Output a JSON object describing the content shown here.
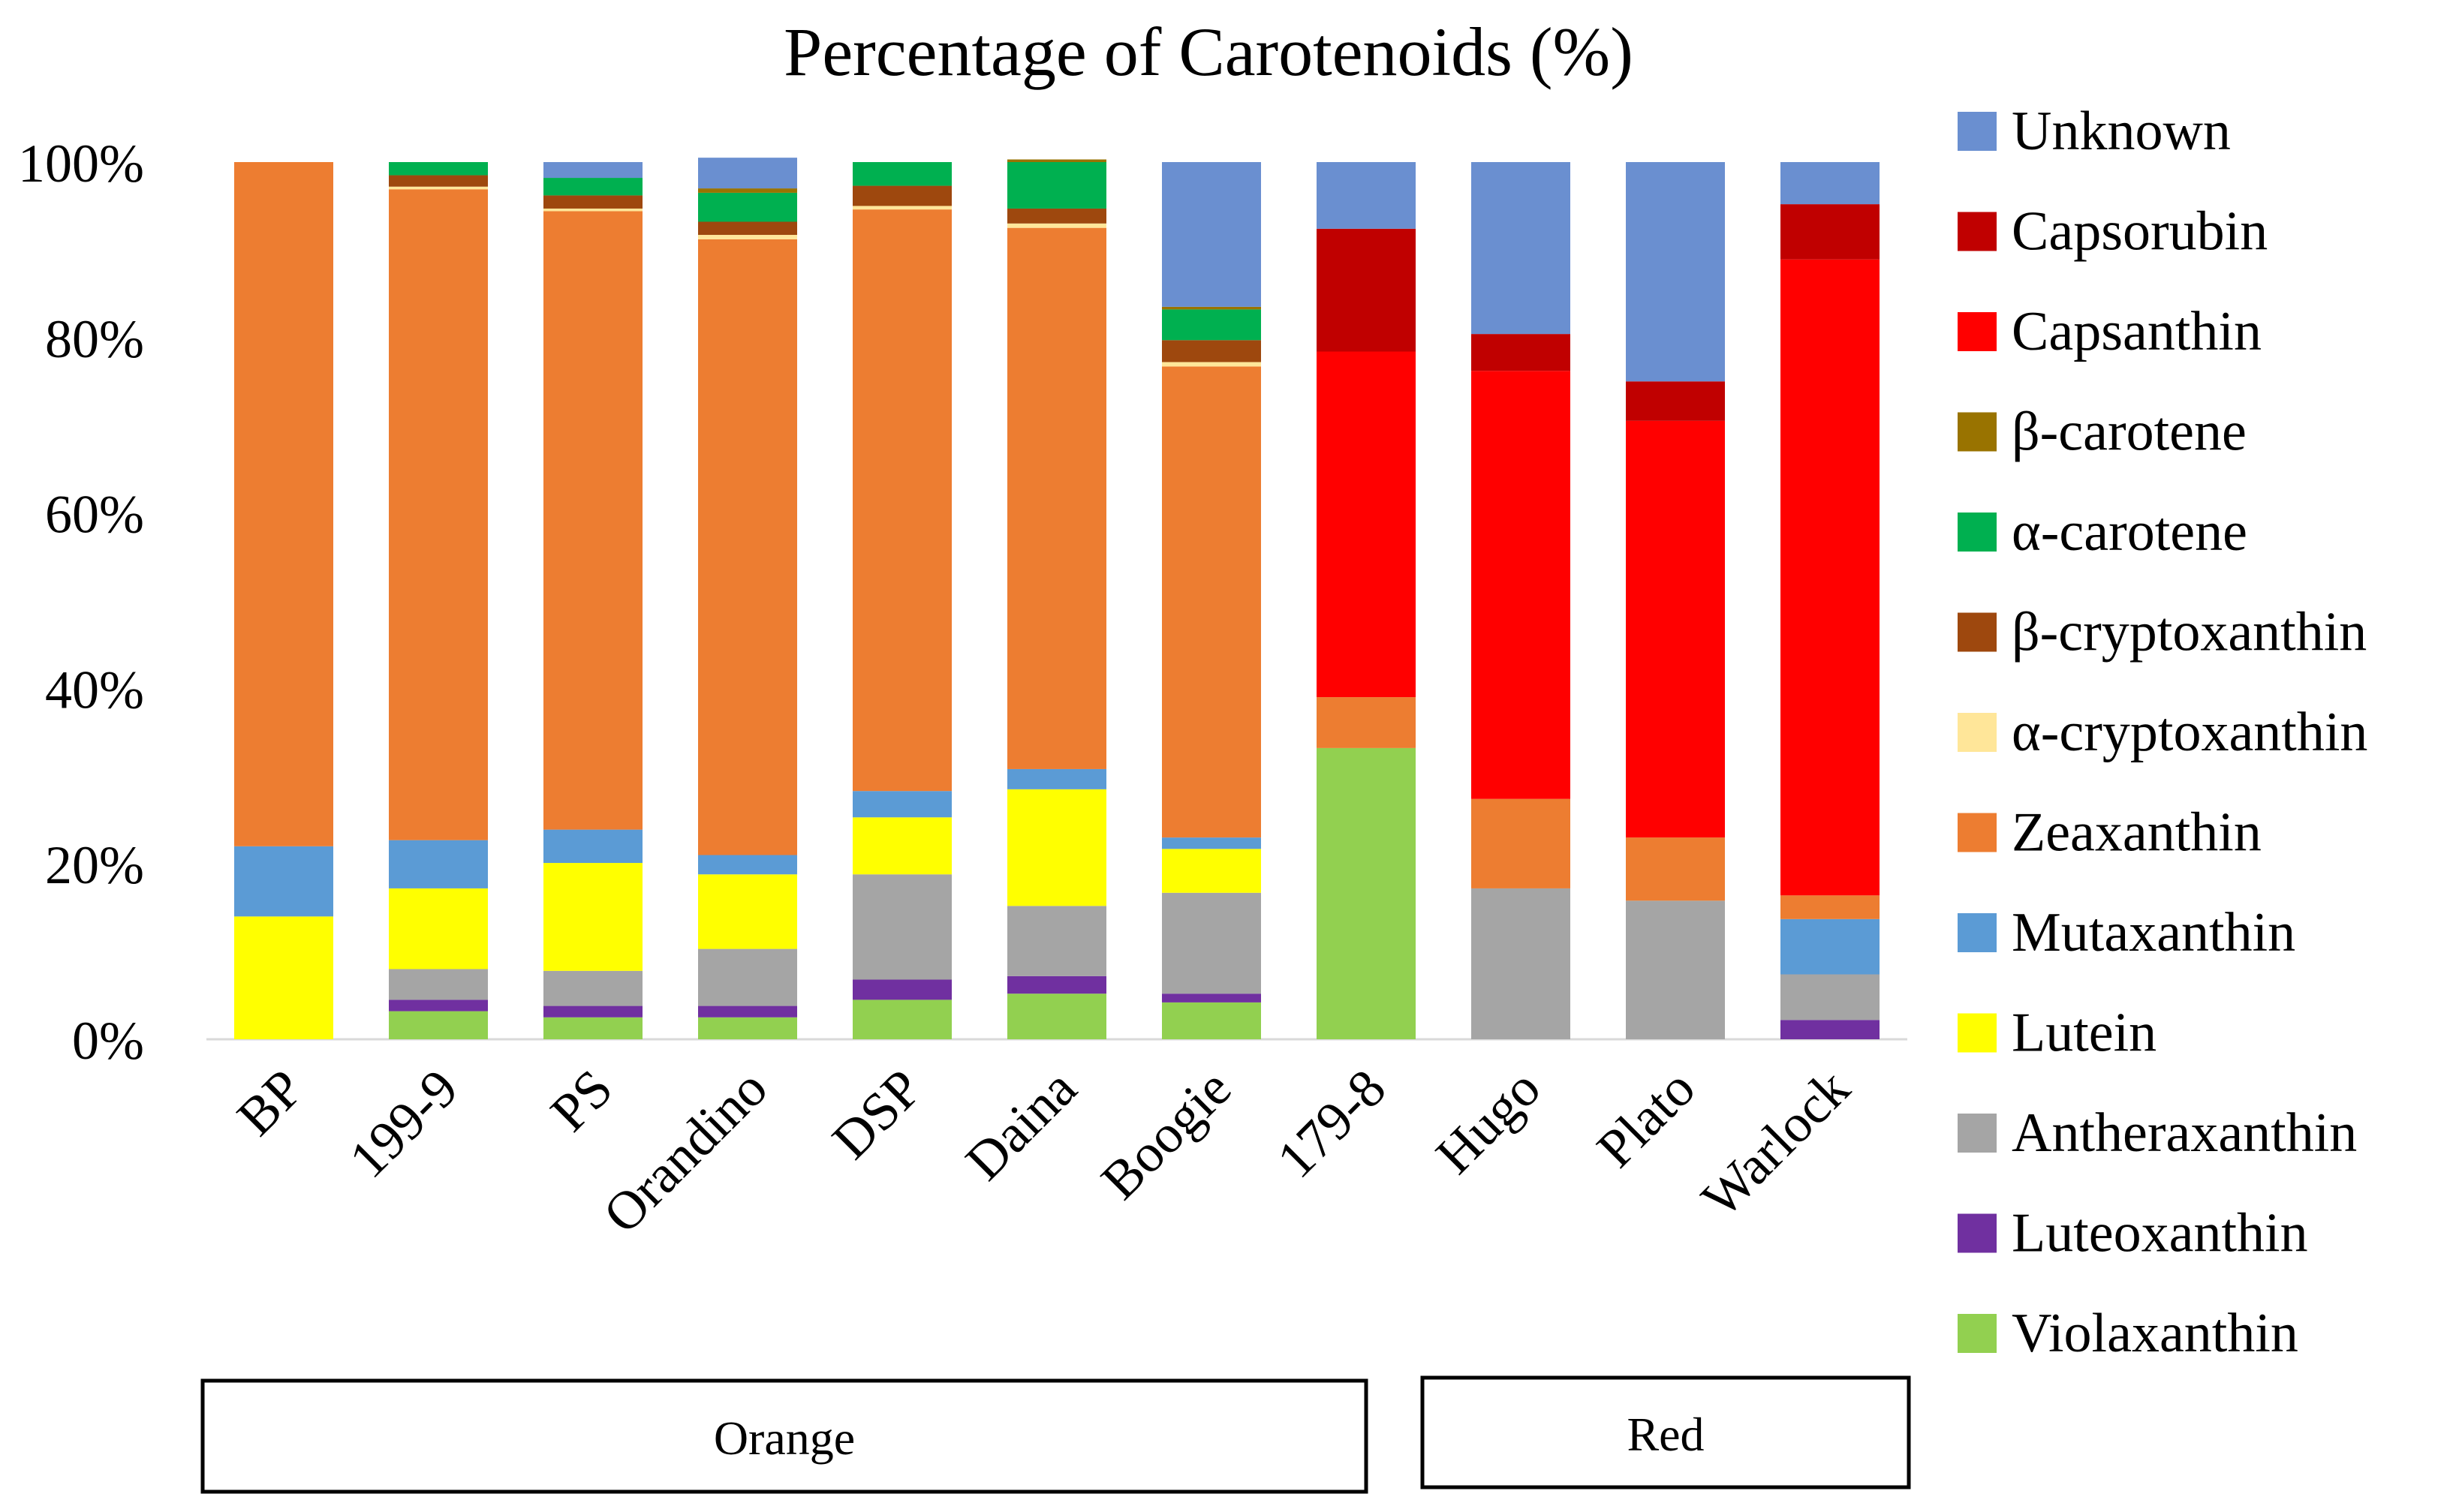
{
  "chart_data": {
    "type": "stacked-bar",
    "title": "Percentage of Carotenoids (%)",
    "xlabel": "",
    "ylabel": "",
    "ylim": [
      0,
      100
    ],
    "y_ticks": [
      0,
      20,
      40,
      60,
      80,
      100
    ],
    "y_tick_labels": [
      "0%",
      "20%",
      "40%",
      "60%",
      "80%",
      "100%"
    ],
    "grid": false,
    "legend_position": "right",
    "categories": [
      "BP",
      "199-9",
      "PS",
      "Orandino",
      "DSP",
      "Daina",
      "Boogie",
      "179-8",
      "Hugo",
      "Plato",
      "Warlock"
    ],
    "groups": [
      {
        "label": "Orange",
        "categories": [
          "BP",
          "199-9",
          "PS",
          "Orandino",
          "DSP",
          "Daina",
          "Boogie"
        ]
      },
      {
        "label": "Red",
        "categories": [
          "179-8",
          "Hugo",
          "Plato",
          "Warlock"
        ]
      }
    ],
    "series": [
      {
        "name": "Violaxanthin",
        "color": "#92D050",
        "values": [
          0,
          3.2,
          2.5,
          2.5,
          4.5,
          5.2,
          4.2,
          33.2,
          0,
          0,
          0
        ]
      },
      {
        "name": "Luteoxanthin",
        "color": "#7030A0",
        "values": [
          0,
          1.3,
          1.3,
          1.3,
          2.3,
          2.0,
          1.0,
          0,
          0,
          0,
          2.2
        ]
      },
      {
        "name": "Antheraxanthin",
        "color": "#A5A5A5",
        "values": [
          0,
          3.5,
          4.0,
          6.5,
          12.0,
          8.0,
          11.5,
          0,
          17.2,
          15.8,
          5.2
        ]
      },
      {
        "name": "Lutein",
        "color": "#FFFF00",
        "values": [
          14.0,
          9.2,
          12.3,
          8.5,
          6.5,
          13.3,
          5.0,
          0,
          0,
          0,
          0
        ]
      },
      {
        "name": "Mutaxanthin",
        "color": "#5B9BD5",
        "values": [
          8.0,
          5.5,
          3.8,
          2.2,
          3.0,
          2.3,
          1.3,
          0,
          0,
          0,
          6.3
        ]
      },
      {
        "name": "Zeaxanthin",
        "color": "#ED7D31",
        "values": [
          78.0,
          74.2,
          70.5,
          70.2,
          66.3,
          61.7,
          53.7,
          5.8,
          10.2,
          7.2,
          2.7
        ]
      },
      {
        "name": "α-cryptoxanthin",
        "color": "#FFE699",
        "values": [
          0,
          0.3,
          0.3,
          0.5,
          0.4,
          0.5,
          0.5,
          0,
          0,
          0,
          0
        ]
      },
      {
        "name": "β-cryptoxanthin",
        "color": "#9E480E",
        "values": [
          0,
          1.3,
          1.5,
          1.5,
          2.3,
          1.7,
          2.5,
          0,
          0,
          0,
          0
        ]
      },
      {
        "name": "α-carotene",
        "color": "#00B050",
        "values": [
          0,
          1.5,
          2.0,
          3.3,
          2.7,
          5.3,
          3.5,
          0,
          0,
          0,
          0
        ]
      },
      {
        "name": "β-carotene",
        "color": "#997300",
        "values": [
          0,
          0,
          0,
          0.5,
          0,
          0.3,
          0.3,
          0,
          0,
          0,
          0
        ]
      },
      {
        "name": "Capsanthin",
        "color": "#FF0000",
        "values": [
          0,
          0,
          0,
          0,
          0,
          0,
          0,
          39.4,
          48.8,
          47.5,
          72.5
        ]
      },
      {
        "name": "Capsorubin",
        "color": "#C00000",
        "values": [
          0,
          0,
          0,
          0,
          0,
          0,
          0,
          14.0,
          4.2,
          4.5,
          6.3
        ]
      },
      {
        "name": "Unknown",
        "color": "#6A8FD0",
        "values": [
          0,
          0,
          1.8,
          3.5,
          0,
          0,
          16.5,
          7.6,
          19.6,
          25.0,
          4.8
        ]
      }
    ]
  }
}
